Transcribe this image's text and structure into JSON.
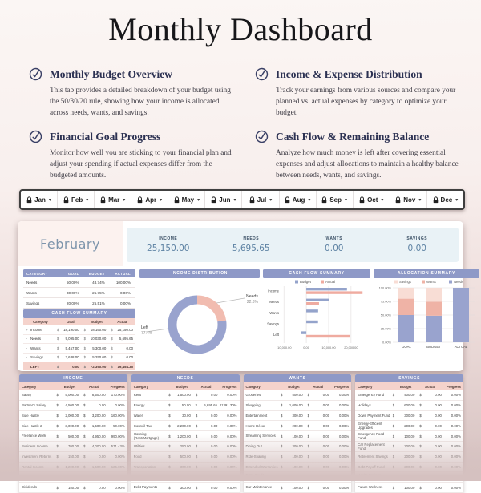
{
  "page_title": "Monthly Dashboard",
  "features": [
    {
      "title": "Monthly Budget Overview",
      "description": "This tab provides a detailed breakdown of your budget using the 50/30/20 rule, showing how your income is allocated across needs, wants, and savings."
    },
    {
      "title": "Income & Expense Distribution",
      "description": "Track your earnings from various sources and compare your planned vs. actual expenses by category to optimize your budget."
    },
    {
      "title": "Financial Goal Progress",
      "description": "Monitor how well you are sticking to your financial plan and adjust your spending if actual expenses differ from the budgeted amounts."
    },
    {
      "title": "Cash Flow & Remaining Balance",
      "description": "Analyze how much money is left after covering essential expenses and adjust allocations to maintain a healthy balance between needs, wants, and savings."
    }
  ],
  "month_tabs": [
    "Jan",
    "Feb",
    "Mar",
    "Apr",
    "May",
    "Jun",
    "Jul",
    "Aug",
    "Sep",
    "Oct",
    "Nov",
    "Dec"
  ],
  "dashboard": {
    "month_label": "February",
    "kpis": [
      {
        "label": "INCOME",
        "value": "25,150.00"
      },
      {
        "label": "NEEDS",
        "value": "5,695.65"
      },
      {
        "label": "WANTS",
        "value": "0.00"
      },
      {
        "label": "SAVINGS",
        "value": "0.00"
      }
    ],
    "ratio_table": {
      "headers": [
        "CATEGORY",
        "GOAL",
        "BUDGET",
        "ACTUAL"
      ],
      "rows": [
        [
          "Needs",
          "50.00%",
          "48.74%",
          "100.00%"
        ],
        [
          "Wants",
          "30.00%",
          "25.75%",
          "0.00%"
        ],
        [
          "Savings",
          "20.00%",
          "25.51%",
          "0.00%"
        ]
      ]
    },
    "cash_flow_table": {
      "title": "CASH FLOW SUMMARY",
      "headers": [
        "Category",
        "Goal",
        "Budget",
        "Actual"
      ],
      "rows": [
        {
          "sign": "+",
          "category": "Income",
          "goal": "18,190.00",
          "budget": "18,190.00",
          "actual": "25,150.00"
        },
        {
          "sign": "-",
          "category": "Needs",
          "goal": "9,095.00",
          "budget": "10,030.00",
          "actual": "5,695.65"
        },
        {
          "sign": "-",
          "category": "Wants",
          "goal": "5,457.00",
          "budget": "5,300.00",
          "actual": "0.00"
        },
        {
          "sign": "-",
          "category": "Savings",
          "goal": "3,638.00",
          "budget": "5,250.00",
          "actual": "0.00"
        }
      ],
      "footer": {
        "label": "LEFT",
        "goal": "0.00",
        "budget": "-2,390.00",
        "actual": "19,454.35"
      }
    },
    "section_titles": {
      "income_distribution": "INCOME DISTRIBUTION",
      "cash_flow_chart": "CASH FLOW SUMMARY",
      "allocation": "ALLOCATION SUMMARY"
    }
  },
  "chart_data": [
    {
      "type": "pie",
      "title": "INCOME DISTRIBUTION",
      "labels": [
        "Needs",
        "Left"
      ],
      "values": [
        22.6,
        77.4
      ],
      "colors": [
        "#f1bcb0",
        "#99a3ce"
      ],
      "annotations": [
        {
          "name": "Needs",
          "pct": "22.6%"
        },
        {
          "name": "Left",
          "pct": "77.4%"
        }
      ]
    },
    {
      "type": "bar",
      "orientation": "horizontal",
      "title": "CASH FLOW SUMMARY",
      "categories": [
        "Income",
        "Needs",
        "Wants",
        "Savings",
        "Left"
      ],
      "series": [
        {
          "name": "Budget",
          "color": "#94a3cb",
          "values": [
            18190,
            10030,
            5300,
            5250,
            -2390
          ]
        },
        {
          "name": "Actual",
          "color": "#efaba0",
          "values": [
            25150,
            5695.65,
            0,
            0,
            19454.35
          ]
        }
      ],
      "xlim": [
        -11500,
        26500
      ],
      "xticks": [
        -10000,
        0,
        10000,
        20000
      ],
      "xtick_labels": [
        "-10,000.00",
        "0.00",
        "10,000.00",
        "20,000.00"
      ],
      "legend_position": "top"
    },
    {
      "type": "bar",
      "stacked": true,
      "title": "ALLOCATION SUMMARY",
      "categories": [
        "GOAL",
        "BUDGET",
        "ACTUAL"
      ],
      "series": [
        {
          "name": "Needs",
          "color": "#99a3ce",
          "values": [
            50,
            48.74,
            100
          ]
        },
        {
          "name": "Wants",
          "color": "#efb3a6",
          "values": [
            30,
            25.75,
            0
          ]
        },
        {
          "name": "Savings",
          "color": "#f8ddd5",
          "values": [
            20,
            25.51,
            0
          ]
        }
      ],
      "ylim": [
        0,
        100
      ],
      "yticks": [
        0,
        25,
        50,
        75,
        100
      ],
      "ytick_labels": [
        "0.00%",
        "25.00%",
        "50.00%",
        "75.00%",
        "100.00%"
      ],
      "legend_order": [
        "Savings",
        "Wants",
        "Needs"
      ],
      "legend_position": "top"
    }
  ],
  "bottom_tables": [
    {
      "title": "INCOME",
      "headers": [
        "Category",
        "Budget",
        "Actual",
        "Progress"
      ],
      "rows": [
        [
          "Salary",
          "5,000.00",
          "8,500.00",
          "170.00%"
        ],
        [
          "Partner's Salary",
          "4,500.00",
          "0.00",
          "0.00%"
        ],
        [
          "Side Hustle",
          "2,000.00",
          "3,200.00",
          "160.00%"
        ],
        [
          "Side Hustle 2",
          "3,000.00",
          "1,500.00",
          "50.00%"
        ],
        [
          "Freelance Work",
          "500.00",
          "4,950.00",
          "990.00%"
        ],
        [
          "Business Income",
          "700.00",
          "4,000.00",
          "571.43%"
        ],
        [
          "Investment Returns",
          "150.00",
          "0.00",
          "0.00%"
        ],
        [
          "Rental Income",
          "1,200.00",
          "1,500.00",
          "125.00%"
        ],
        [
          "Passive Income",
          "300.00",
          "1,500.00",
          "500.00%"
        ],
        [
          "Dividends",
          "150.00",
          "0.00",
          "0.00%"
        ]
      ]
    },
    {
      "title": "NEEDS",
      "headers": [
        "Category",
        "Budget",
        "Actual",
        "Progress"
      ],
      "rows": [
        [
          "Rent",
          "1,500.00",
          "0.00",
          "0.00%"
        ],
        [
          "Energy",
          "50.00",
          "5,695.65",
          "11391.30%"
        ],
        [
          "Water",
          "30.00",
          "0.00",
          "0.00%"
        ],
        [
          "Council Tax",
          "2,200.00",
          "0.00",
          "0.00%"
        ],
        [
          "Housing (Rent/Mortgage)",
          "1,200.00",
          "0.00",
          "0.00%"
        ],
        [
          "Utilities",
          "250.00",
          "0.00",
          "0.00%"
        ],
        [
          "Food",
          "500.00",
          "0.00",
          "0.00%"
        ],
        [
          "Transportation",
          "300.00",
          "0.00",
          "0.00%"
        ],
        [
          "Insurance",
          "250.00",
          "0.00",
          "0.00%"
        ],
        [
          "Debt Payments",
          "300.00",
          "0.00",
          "0.00%"
        ]
      ]
    },
    {
      "title": "WANTS",
      "headers": [
        "Category",
        "Budget",
        "Actual",
        "Progress"
      ],
      "rows": [
        [
          "Groceries",
          "500.00",
          "0.00",
          "0.00%"
        ],
        [
          "Shopping",
          "1,000.00",
          "0.00",
          "0.00%"
        ],
        [
          "Entertainment",
          "300.00",
          "0.00",
          "0.00%"
        ],
        [
          "Home Décor",
          "200.00",
          "0.00",
          "0.00%"
        ],
        [
          "Streaming Services",
          "100.00",
          "0.00",
          "0.00%"
        ],
        [
          "Dining Out",
          "300.00",
          "0.00",
          "0.00%"
        ],
        [
          "Ride-Sharing",
          "100.00",
          "0.00",
          "0.00%"
        ],
        [
          "Extended Warranties",
          "100.00",
          "0.00",
          "0.00%"
        ],
        [
          "Extra Credit Payments",
          "200.00",
          "0.00",
          "0.00%"
        ],
        [
          "Car Maintenance",
          "100.00",
          "0.00",
          "0.00%"
        ]
      ]
    },
    {
      "title": "SAVINGS",
      "headers": [
        "Category",
        "Budget",
        "Actual",
        "Progress"
      ],
      "rows": [
        [
          "Emergency Fund",
          "400.00",
          "0.00",
          "0.00%"
        ],
        [
          "Holidays",
          "600.00",
          "0.00",
          "0.00%"
        ],
        [
          "Down Payment Fund",
          "300.00",
          "0.00",
          "0.00%"
        ],
        [
          "Energy-Efficient Upgrades",
          "200.00",
          "0.00",
          "0.00%"
        ],
        [
          "Emergency Food Fund",
          "100.00",
          "0.00",
          "0.00%"
        ],
        [
          "Car Replacement Fund",
          "200.00",
          "0.00",
          "0.00%"
        ],
        [
          "Retirement Savings",
          "200.00",
          "0.00",
          "0.00%"
        ],
        [
          "Debt Payoff Fund",
          "200.00",
          "0.00",
          "0.00%"
        ],
        [
          "Health Savings Account",
          "200.00",
          "0.00",
          "0.00%"
        ],
        [
          "Future Wellness",
          "100.00",
          "0.00",
          "0.00%"
        ]
      ]
    }
  ],
  "colors": {
    "header_purple": "#8e99c7",
    "header_pink": "#f5d3cc",
    "accent_blue": "#99a3ce",
    "accent_pink": "#efaba0",
    "kpi_panel": "#e9f2f6",
    "icon_navy": "#3a4066"
  }
}
